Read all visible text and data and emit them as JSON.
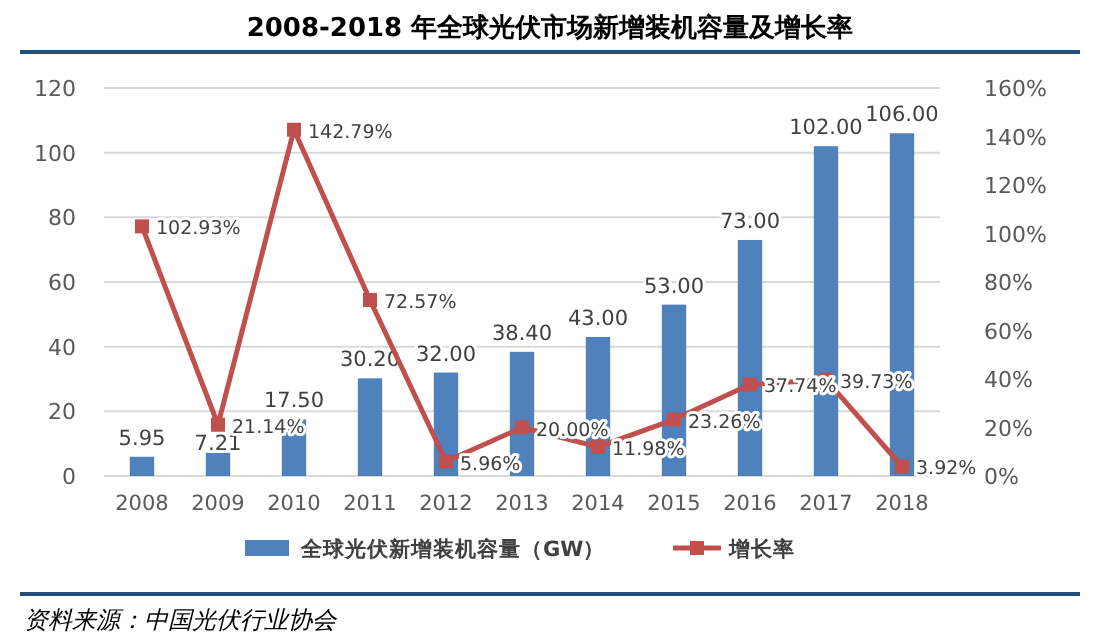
{
  "chart_data": {
    "type": "bar",
    "title": "2008-2018 年全球光伏市场新增装机容量及增长率",
    "categories": [
      "2008",
      "2009",
      "2010",
      "2011",
      "2012",
      "2013",
      "2014",
      "2015",
      "2016",
      "2017",
      "2018"
    ],
    "series": [
      {
        "name": "全球光伏新增装机容量（GW）",
        "color": "#4f81bd",
        "values": [
          5.95,
          7.21,
          17.5,
          30.2,
          32,
          38.4,
          43,
          53,
          73,
          102,
          106
        ],
        "value_labels": [
          "5.95",
          "7.21",
          "17.50",
          "30.20",
          "32.00",
          "38.40",
          "43.00",
          "53.00",
          "73.00",
          "102.00",
          "106.00"
        ]
      },
      {
        "name": "增长率",
        "type": "line",
        "axis": "y2",
        "color": "#c0504d",
        "marker": "square",
        "values": [
          102.93,
          21.14,
          142.79,
          72.57,
          5.96,
          20.0,
          11.98,
          23.26,
          37.74,
          39.73,
          3.92
        ],
        "value_labels": [
          "102.93%",
          "21.14%",
          "142.79%",
          "72.57%",
          "5.96%",
          "20.00%",
          "11.98%",
          "23.26%",
          "37.74%",
          "39.73%",
          "3.92%"
        ]
      }
    ],
    "ylim": [
      0,
      120
    ],
    "yticks": [
      0,
      20,
      40,
      60,
      80,
      100,
      120
    ],
    "y2lim": [
      0,
      160
    ],
    "y2ticks": [
      {
        "value": 0,
        "label": "0%"
      },
      {
        "value": 20,
        "label": "20%"
      },
      {
        "value": 40,
        "label": "40%"
      },
      {
        "value": 60,
        "label": "60%"
      },
      {
        "value": 80,
        "label": "80%"
      },
      {
        "value": 100,
        "label": "100%"
      },
      {
        "value": 120,
        "label": "120%"
      },
      {
        "value": 140,
        "label": "140%"
      },
      {
        "value": 160,
        "label": "160%"
      }
    ],
    "grid": "y",
    "legend": "bottom",
    "annotations": [
      "资料来源：中国光伏行业协会"
    ]
  }
}
